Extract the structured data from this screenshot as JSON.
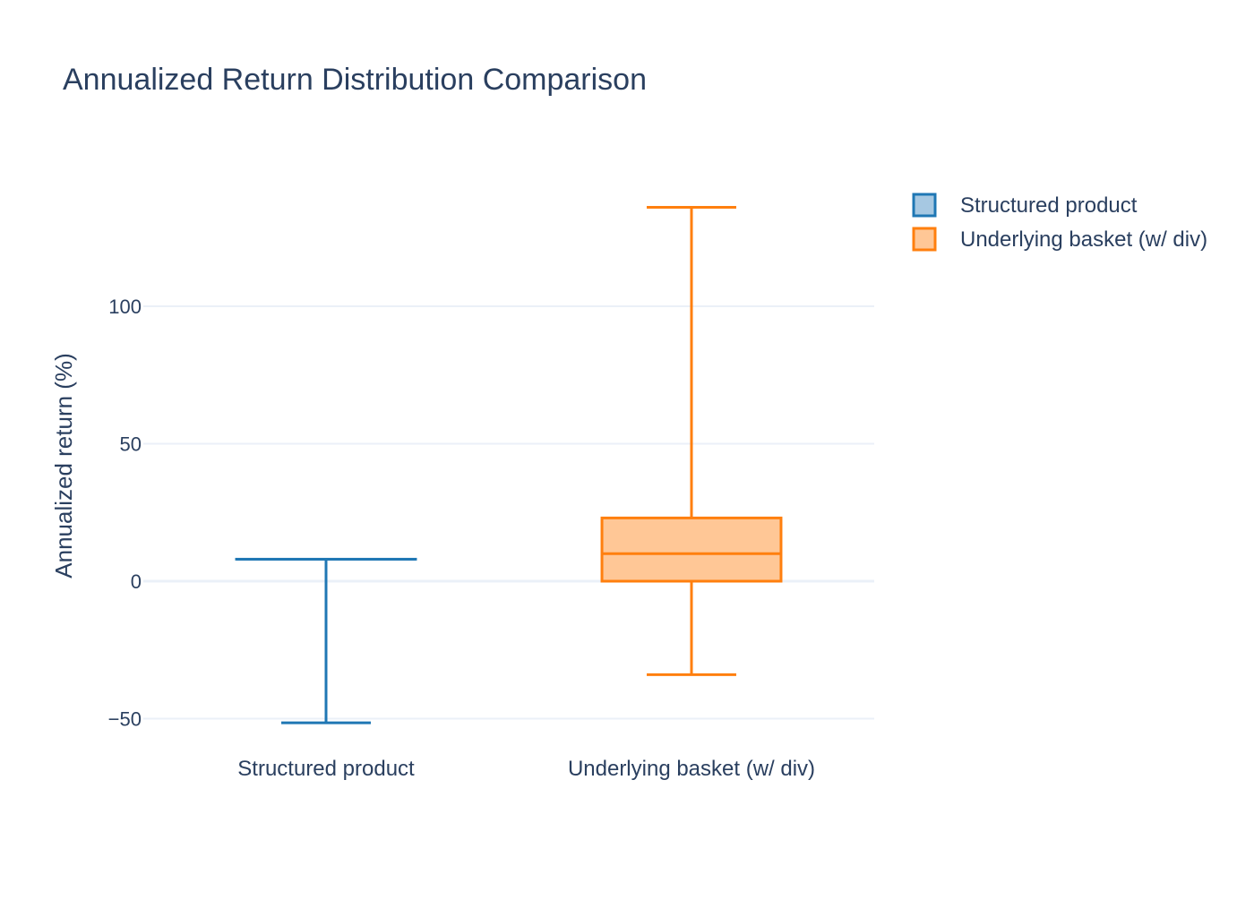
{
  "chart_data": {
    "type": "box",
    "title": "Annualized Return Distribution Comparison",
    "xlabel": "",
    "ylabel": "Annualized return (%)",
    "ylim": [
      -60,
      140
    ],
    "yticks": [
      -50,
      0,
      50,
      100
    ],
    "ytick_labels": [
      "−50",
      "0",
      "50",
      "100"
    ],
    "grid": true,
    "legend_position": "top-right",
    "categories": [
      "Structured product",
      "Underlying basket (w/ div)"
    ],
    "series": [
      {
        "name": "Structured product",
        "category": "Structured product",
        "color": "#1f77b4",
        "fill": "#a6c8e2",
        "min": -51.5,
        "q1": 8,
        "median": 8,
        "q3": 8,
        "max": 8
      },
      {
        "name": "Underlying basket (w/ div)",
        "category": "Underlying basket (w/ div)",
        "color": "#ff7f0e",
        "fill": "#ffc796",
        "min": -34,
        "q1": 0,
        "median": 10,
        "q3": 23,
        "max": 136
      }
    ]
  }
}
